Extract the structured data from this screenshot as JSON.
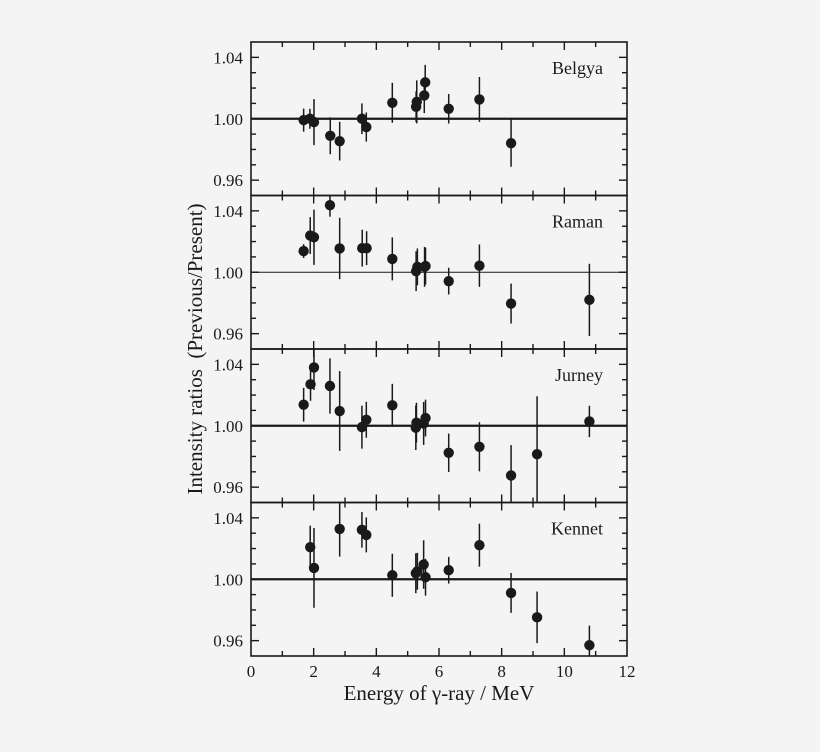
{
  "chart_data": {
    "type": "scatter",
    "xlabel": "Energy of γ-ray / MeV",
    "ylabel": "Intensity ratios  (Previous/Present)",
    "xlim": [
      0,
      12
    ],
    "ylim": [
      0.95,
      1.05
    ],
    "x_ticks": [
      "0",
      "2",
      "4",
      "6",
      "8",
      "10",
      "12"
    ],
    "y_ticks": [
      "1.04",
      "1.00",
      "0.96"
    ],
    "reference_line": 1.0,
    "grid": false,
    "marker_color": "#1a1a1a",
    "panels": [
      {
        "name": "Belgya",
        "points": [
          {
            "x": 1.68,
            "y": 0.9991,
            "err": 0.0075
          },
          {
            "x": 1.88,
            "y": 1.0,
            "err": 0.0065
          },
          {
            "x": 2.01,
            "y": 0.9978,
            "err": 0.015
          },
          {
            "x": 2.53,
            "y": 0.9889,
            "err": 0.012
          },
          {
            "x": 2.83,
            "y": 0.9854,
            "err": 0.0126
          },
          {
            "x": 3.54,
            "y": 1.0,
            "err": 0.01
          },
          {
            "x": 3.68,
            "y": 0.9946,
            "err": 0.0095
          },
          {
            "x": 4.51,
            "y": 1.0104,
            "err": 0.013
          },
          {
            "x": 5.27,
            "y": 1.0078,
            "err": 0.01
          },
          {
            "x": 5.29,
            "y": 1.011,
            "err": 0.014
          },
          {
            "x": 5.53,
            "y": 1.0152,
            "err": 0.0115
          },
          {
            "x": 5.56,
            "y": 1.0237,
            "err": 0.0114
          },
          {
            "x": 6.31,
            "y": 1.0065,
            "err": 0.0096
          },
          {
            "x": 7.29,
            "y": 1.0126,
            "err": 0.0146
          },
          {
            "x": 8.3,
            "y": 0.9841,
            "err": 0.0154
          }
        ]
      },
      {
        "name": "Raman",
        "points": [
          {
            "x": 1.68,
            "y": 1.0138,
            "err": 0.0045
          },
          {
            "x": 1.89,
            "y": 1.0239,
            "err": 0.012
          },
          {
            "x": 2.01,
            "y": 1.0228,
            "err": 0.018
          },
          {
            "x": 2.52,
            "y": 1.0437,
            "err": 0.0075
          },
          {
            "x": 2.83,
            "y": 1.0155,
            "err": 0.02
          },
          {
            "x": 3.55,
            "y": 1.0157,
            "err": 0.012
          },
          {
            "x": 3.69,
            "y": 1.0157,
            "err": 0.011
          },
          {
            "x": 4.51,
            "y": 1.0087,
            "err": 0.014
          },
          {
            "x": 5.27,
            "y": 1.0007,
            "err": 0.013
          },
          {
            "x": 5.31,
            "y": 1.0035,
            "err": 0.012
          },
          {
            "x": 5.54,
            "y": 1.0035,
            "err": 0.013
          },
          {
            "x": 5.57,
            "y": 1.004,
            "err": 0.012
          },
          {
            "x": 6.31,
            "y": 0.9942,
            "err": 0.0087
          },
          {
            "x": 7.29,
            "y": 1.0043,
            "err": 0.0138
          },
          {
            "x": 8.3,
            "y": 0.9796,
            "err": 0.013
          },
          {
            "x": 10.8,
            "y": 0.982,
            "err": 0.0235
          }
        ]
      },
      {
        "name": "Jurney",
        "points": [
          {
            "x": 1.68,
            "y": 1.0137,
            "err": 0.011
          },
          {
            "x": 1.9,
            "y": 1.027,
            "err": 0.0107
          },
          {
            "x": 2.01,
            "y": 1.038,
            "err": 0.0147
          },
          {
            "x": 2.52,
            "y": 1.0259,
            "err": 0.018
          },
          {
            "x": 2.83,
            "y": 1.0096,
            "err": 0.026
          },
          {
            "x": 3.54,
            "y": 0.9991,
            "err": 0.014
          },
          {
            "x": 3.68,
            "y": 1.0039,
            "err": 0.0117
          },
          {
            "x": 4.51,
            "y": 1.0133,
            "err": 0.014
          },
          {
            "x": 5.26,
            "y": 0.9987,
            "err": 0.0145
          },
          {
            "x": 5.28,
            "y": 1.002,
            "err": 0.013
          },
          {
            "x": 5.51,
            "y": 1.0015,
            "err": 0.014
          },
          {
            "x": 5.57,
            "y": 1.005,
            "err": 0.012
          },
          {
            "x": 6.31,
            "y": 0.9824,
            "err": 0.0125
          },
          {
            "x": 7.29,
            "y": 0.9863,
            "err": 0.016
          },
          {
            "x": 8.3,
            "y": 0.9676,
            "err": 0.0198
          },
          {
            "x": 9.13,
            "y": 0.9815,
            "err": 0.0377
          },
          {
            "x": 10.8,
            "y": 1.0028,
            "err": 0.0102
          }
        ]
      },
      {
        "name": "Kennet",
        "points": [
          {
            "x": 1.89,
            "y": 1.0209,
            "err": 0.014
          },
          {
            "x": 2.01,
            "y": 1.0074,
            "err": 0.026
          },
          {
            "x": 2.83,
            "y": 1.0328,
            "err": 0.018
          },
          {
            "x": 3.54,
            "y": 1.0322,
            "err": 0.0116
          },
          {
            "x": 3.68,
            "y": 1.0289,
            "err": 0.0114
          },
          {
            "x": 4.51,
            "y": 1.0026,
            "err": 0.014
          },
          {
            "x": 5.26,
            "y": 1.0039,
            "err": 0.013
          },
          {
            "x": 5.31,
            "y": 1.0052,
            "err": 0.012
          },
          {
            "x": 5.51,
            "y": 1.0096,
            "err": 0.0158
          },
          {
            "x": 5.57,
            "y": 1.0013,
            "err": 0.012
          },
          {
            "x": 6.31,
            "y": 1.0059,
            "err": 0.0087
          },
          {
            "x": 7.29,
            "y": 1.0222,
            "err": 0.014
          },
          {
            "x": 8.3,
            "y": 0.9911,
            "err": 0.013
          },
          {
            "x": 9.13,
            "y": 0.9752,
            "err": 0.0168
          },
          {
            "x": 10.8,
            "y": 0.957,
            "err": 0.0128
          }
        ]
      }
    ]
  }
}
